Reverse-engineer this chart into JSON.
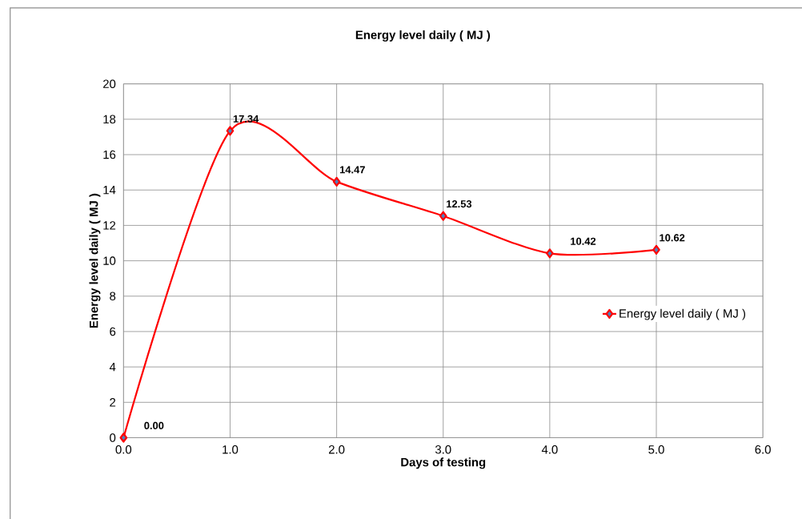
{
  "chart_data": {
    "type": "line",
    "title": "Energy level daily ( MJ )",
    "xlabel": "Days of testing",
    "ylabel": "Energy level daily ( MJ )",
    "x": [
      0,
      1,
      2,
      3,
      4,
      5
    ],
    "series": [
      {
        "name": "Energy level daily ( MJ )",
        "color": "#ff0000",
        "values": [
          0,
          17.34,
          14.47,
          12.53,
          10.42,
          10.62
        ],
        "value_labels": [
          "0.00",
          "17.34",
          "14.47",
          "12.53",
          "10.42",
          "10.62"
        ]
      }
    ],
    "xlim": [
      0,
      6
    ],
    "ylim": [
      0,
      20
    ],
    "xticks": [
      {
        "value": 0,
        "label": "0.0"
      },
      {
        "value": 1,
        "label": "1.0"
      },
      {
        "value": 2,
        "label": "2.0"
      },
      {
        "value": 3,
        "label": "3.0"
      },
      {
        "value": 4,
        "label": "4.0"
      },
      {
        "value": 5,
        "label": "5.0"
      },
      {
        "value": 6,
        "label": "6.0"
      }
    ],
    "yticks": [
      0,
      2,
      4,
      6,
      8,
      10,
      12,
      14,
      16,
      18,
      20
    ],
    "grid": true,
    "legend": "right",
    "marker": "diamond",
    "line_style": "solid"
  }
}
